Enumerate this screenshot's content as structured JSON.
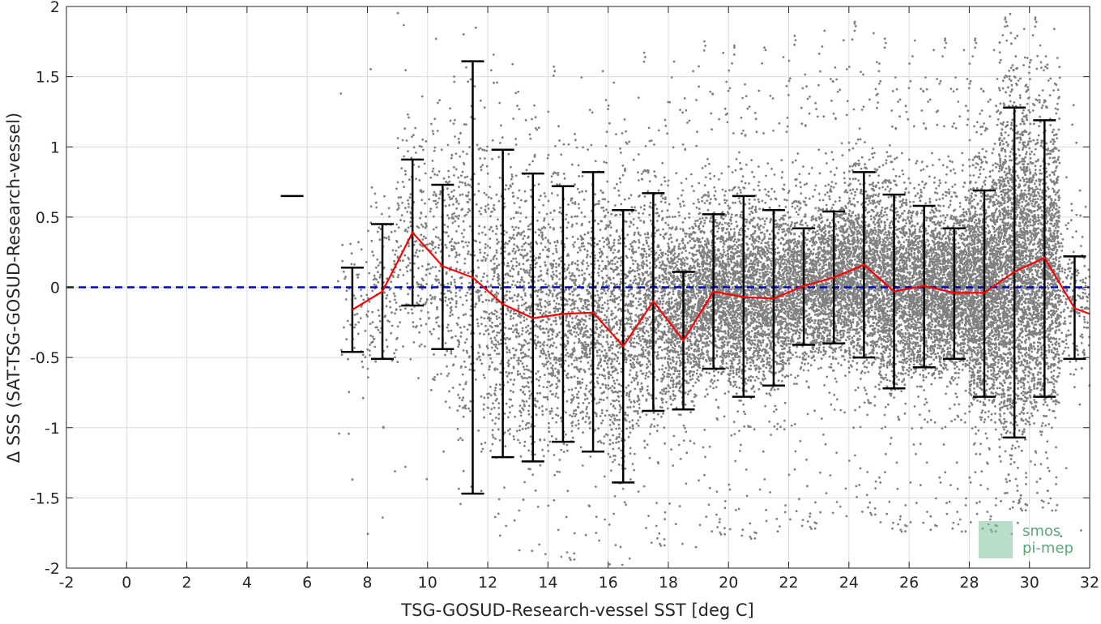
{
  "chart_data": {
    "type": "scatter",
    "xlabel": "TSG-GOSUD-Research-vessel SST [deg C]",
    "ylabel": "Δ SSS (SAT-TSG-GOSUD-Research-vessel)",
    "xlim": [
      -2,
      32
    ],
    "ylim": [
      -2,
      2
    ],
    "x_ticks": [
      -2,
      0,
      2,
      4,
      6,
      8,
      10,
      12,
      14,
      16,
      18,
      20,
      22,
      24,
      26,
      28,
      30,
      32
    ],
    "y_ticks": [
      -2,
      -1.5,
      -1,
      -0.5,
      0,
      0.5,
      1,
      1.5,
      2
    ],
    "x_tick_labels": [
      "-2",
      "0",
      "2",
      "4",
      "6",
      "8",
      "10",
      "12",
      "14",
      "16",
      "18",
      "20",
      "22",
      "24",
      "26",
      "28",
      "30",
      "32"
    ],
    "y_tick_labels": [
      "-2",
      "-1.5",
      "-1",
      "-0.5",
      "0",
      "0.5",
      "1",
      "1.5",
      "2"
    ],
    "grid": true,
    "reference_line": {
      "y": 0,
      "color": "#0000cc",
      "style": "dashed"
    },
    "scatter_color": "#808080",
    "mean_line_color": "#ff0000",
    "errorbar_color": "#000000",
    "binned_stats": [
      {
        "x": 5.5,
        "mean": 0.65,
        "lower": 0.65,
        "upper": 0.65
      },
      {
        "x": 7.5,
        "mean": -0.16,
        "lower": -0.46,
        "upper": 0.14
      },
      {
        "x": 8.5,
        "mean": -0.03,
        "lower": -0.51,
        "upper": 0.45
      },
      {
        "x": 9.5,
        "mean": 0.39,
        "lower": -0.13,
        "upper": 0.91
      },
      {
        "x": 10.5,
        "mean": 0.15,
        "lower": -0.44,
        "upper": 0.73
      },
      {
        "x": 11.5,
        "mean": 0.07,
        "lower": -1.47,
        "upper": 1.61
      },
      {
        "x": 12.5,
        "mean": -0.12,
        "lower": -1.21,
        "upper": 0.98
      },
      {
        "x": 13.5,
        "mean": -0.22,
        "lower": -1.24,
        "upper": 0.81
      },
      {
        "x": 14.5,
        "mean": -0.19,
        "lower": -1.1,
        "upper": 0.72
      },
      {
        "x": 15.5,
        "mean": -0.18,
        "lower": -1.17,
        "upper": 0.82
      },
      {
        "x": 16.5,
        "mean": -0.42,
        "lower": -1.39,
        "upper": 0.55
      },
      {
        "x": 17.5,
        "mean": -0.1,
        "lower": -0.88,
        "upper": 0.67
      },
      {
        "x": 18.5,
        "mean": -0.38,
        "lower": -0.87,
        "upper": 0.11
      },
      {
        "x": 19.5,
        "mean": -0.03,
        "lower": -0.58,
        "upper": 0.52
      },
      {
        "x": 20.5,
        "mean": -0.07,
        "lower": -0.78,
        "upper": 0.65
      },
      {
        "x": 21.5,
        "mean": -0.08,
        "lower": -0.7,
        "upper": 0.55
      },
      {
        "x": 22.5,
        "mean": 0.01,
        "lower": -0.41,
        "upper": 0.42
      },
      {
        "x": 23.5,
        "mean": 0.07,
        "lower": -0.4,
        "upper": 0.54
      },
      {
        "x": 24.5,
        "mean": 0.16,
        "lower": -0.5,
        "upper": 0.82
      },
      {
        "x": 25.5,
        "mean": -0.03,
        "lower": -0.72,
        "upper": 0.66
      },
      {
        "x": 26.5,
        "mean": 0.01,
        "lower": -0.57,
        "upper": 0.58
      },
      {
        "x": 27.5,
        "mean": -0.04,
        "lower": -0.51,
        "upper": 0.42
      },
      {
        "x": 28.5,
        "mean": -0.04,
        "lower": -0.78,
        "upper": 0.69
      },
      {
        "x": 29.5,
        "mean": 0.11,
        "lower": -1.07,
        "upper": 1.28
      },
      {
        "x": 30.5,
        "mean": 0.21,
        "lower": -0.78,
        "upper": 1.19
      },
      {
        "x": 31.5,
        "mean": -0.15,
        "lower": -0.51,
        "upper": 0.22
      },
      {
        "x": 32,
        "mean": -0.19,
        "lower": null,
        "upper": null
      }
    ],
    "scatter_density": [
      {
        "x0": 7.0,
        "x1": 8.0,
        "center": -0.15,
        "spread": 0.3,
        "count": 60
      },
      {
        "x0": 8.0,
        "x1": 9.0,
        "center": 0.0,
        "spread": 0.45,
        "count": 140
      },
      {
        "x0": 9.0,
        "x1": 10.0,
        "center": 0.35,
        "spread": 0.55,
        "count": 200
      },
      {
        "x0": 10.0,
        "x1": 11.0,
        "center": 0.2,
        "spread": 0.6,
        "count": 260
      },
      {
        "x0": 11.0,
        "x1": 12.0,
        "center": 0.1,
        "spread": 0.8,
        "count": 300
      },
      {
        "x0": 12.0,
        "x1": 13.0,
        "center": -0.1,
        "spread": 0.7,
        "count": 420
      },
      {
        "x0": 13.0,
        "x1": 14.0,
        "center": -0.2,
        "spread": 0.65,
        "count": 480
      },
      {
        "x0": 14.0,
        "x1": 15.0,
        "center": -0.2,
        "spread": 0.6,
        "count": 520
      },
      {
        "x0": 15.0,
        "x1": 16.0,
        "center": -0.15,
        "spread": 0.65,
        "count": 560
      },
      {
        "x0": 16.0,
        "x1": 17.0,
        "center": -0.3,
        "spread": 0.65,
        "count": 620
      },
      {
        "x0": 17.0,
        "x1": 18.0,
        "center": -0.1,
        "spread": 0.55,
        "count": 700
      },
      {
        "x0": 18.0,
        "x1": 19.0,
        "center": -0.15,
        "spread": 0.45,
        "count": 900
      },
      {
        "x0": 19.0,
        "x1": 20.0,
        "center": -0.02,
        "spread": 0.4,
        "count": 1100
      },
      {
        "x0": 20.0,
        "x1": 21.0,
        "center": -0.05,
        "spread": 0.45,
        "count": 1100
      },
      {
        "x0": 21.0,
        "x1": 22.0,
        "center": -0.05,
        "spread": 0.42,
        "count": 1000
      },
      {
        "x0": 22.0,
        "x1": 23.0,
        "center": 0.02,
        "spread": 0.35,
        "count": 1000
      },
      {
        "x0": 23.0,
        "x1": 24.0,
        "center": 0.07,
        "spread": 0.38,
        "count": 1100
      },
      {
        "x0": 24.0,
        "x1": 25.0,
        "center": 0.12,
        "spread": 0.45,
        "count": 1200
      },
      {
        "x0": 25.0,
        "x1": 26.0,
        "center": 0.0,
        "spread": 0.45,
        "count": 1200
      },
      {
        "x0": 26.0,
        "x1": 27.0,
        "center": 0.0,
        "spread": 0.42,
        "count": 1200
      },
      {
        "x0": 27.0,
        "x1": 28.0,
        "center": 0.0,
        "spread": 0.4,
        "count": 1300
      },
      {
        "x0": 28.0,
        "x1": 29.0,
        "center": 0.0,
        "spread": 0.55,
        "count": 1700
      },
      {
        "x0": 29.0,
        "x1": 30.0,
        "center": 0.15,
        "spread": 0.8,
        "count": 2200
      },
      {
        "x0": 30.0,
        "x1": 31.0,
        "center": 0.15,
        "spread": 0.7,
        "count": 1400
      },
      {
        "x0": 31.0,
        "x1": 32.0,
        "center": -0.1,
        "spread": 0.35,
        "count": 200
      }
    ]
  },
  "watermark": {
    "line1": "smos",
    "line2": "pi-mep",
    "color": "#5aa67a"
  }
}
